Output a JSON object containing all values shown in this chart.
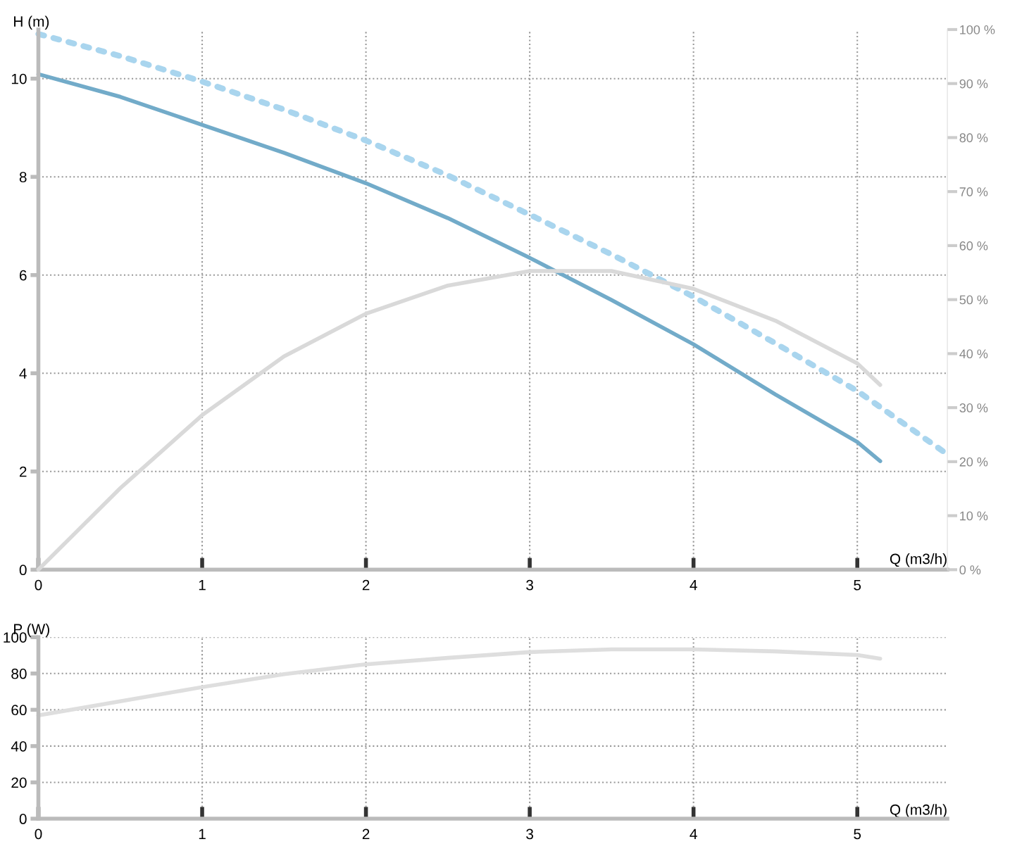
{
  "chart_data": [
    {
      "type": "line",
      "ylabel": "H (m)",
      "xlabel": "Q (m3/h)",
      "xlim": [
        0,
        5.55
      ],
      "ylim": [
        0,
        11
      ],
      "xticks": [
        0,
        1,
        2,
        3,
        4,
        5
      ],
      "yticks": [
        0,
        2,
        4,
        6,
        8,
        10
      ],
      "y2lim": [
        0,
        100
      ],
      "y2ticks": [
        {
          "value": 0,
          "label": "0 %"
        },
        {
          "value": 10,
          "label": "10 %"
        },
        {
          "value": 20,
          "label": "20 %"
        },
        {
          "value": 30,
          "label": "30 %"
        },
        {
          "value": 40,
          "label": "40 %"
        },
        {
          "value": 50,
          "label": "50 %"
        },
        {
          "value": 60,
          "label": "60 %"
        },
        {
          "value": 70,
          "label": "70 %"
        },
        {
          "value": 80,
          "label": "80 %"
        },
        {
          "value": 90,
          "label": "90 %"
        },
        {
          "value": 100,
          "label": "100 %"
        }
      ],
      "grid": true,
      "marker": "none",
      "series": [
        {
          "color": "#a9d5ee",
          "line_style": "dotted",
          "x": [
            0,
            0.5,
            1,
            1.5,
            2,
            2.5,
            3,
            3.5,
            4,
            4.5,
            5,
            5.55
          ],
          "values": [
            10.91,
            10.46,
            9.94,
            9.37,
            8.74,
            8.03,
            7.23,
            6.42,
            5.56,
            4.61,
            3.64,
            2.35
          ]
        },
        {
          "color": "#d9d9d9",
          "line_style": "solid",
          "axis": "y2",
          "x": [
            0,
            0.5,
            1,
            1.5,
            2,
            2.5,
            3,
            3.5,
            4,
            4.5,
            5,
            5.14
          ],
          "values": [
            0,
            15.1,
            28.6,
            39.5,
            47.4,
            52.6,
            55.3,
            55.3,
            52.0,
            46.1,
            38.2,
            34.2
          ]
        },
        {
          "color": "#72abc9",
          "line_style": "solid",
          "x": [
            0,
            0.5,
            1,
            1.5,
            2,
            2.5,
            3,
            3.5,
            4,
            4.5,
            5,
            5.14
          ],
          "values": [
            10.09,
            9.63,
            9.06,
            8.49,
            7.87,
            7.16,
            6.35,
            5.49,
            4.59,
            3.57,
            2.6,
            2.21
          ]
        }
      ]
    },
    {
      "type": "line",
      "ylabel": "P (W)",
      "xlabel": "Q (m3/h)",
      "xlim": [
        0,
        5.55
      ],
      "ylim": [
        0,
        100
      ],
      "xticks": [
        0,
        1,
        2,
        3,
        4,
        5
      ],
      "yticks": [
        0,
        20,
        40,
        60,
        80,
        100
      ],
      "grid": true,
      "marker": "none",
      "series": [
        {
          "color": "#dedede",
          "line_style": "solid",
          "x": [
            0,
            0.5,
            1,
            1.5,
            2,
            2.5,
            3,
            3.5,
            4,
            4.5,
            5,
            5.14
          ],
          "values": [
            56.9,
            64.7,
            72.5,
            79.6,
            85.1,
            88.6,
            91.8,
            93.3,
            93.3,
            92.2,
            90.2,
            88.2
          ]
        }
      ]
    }
  ]
}
